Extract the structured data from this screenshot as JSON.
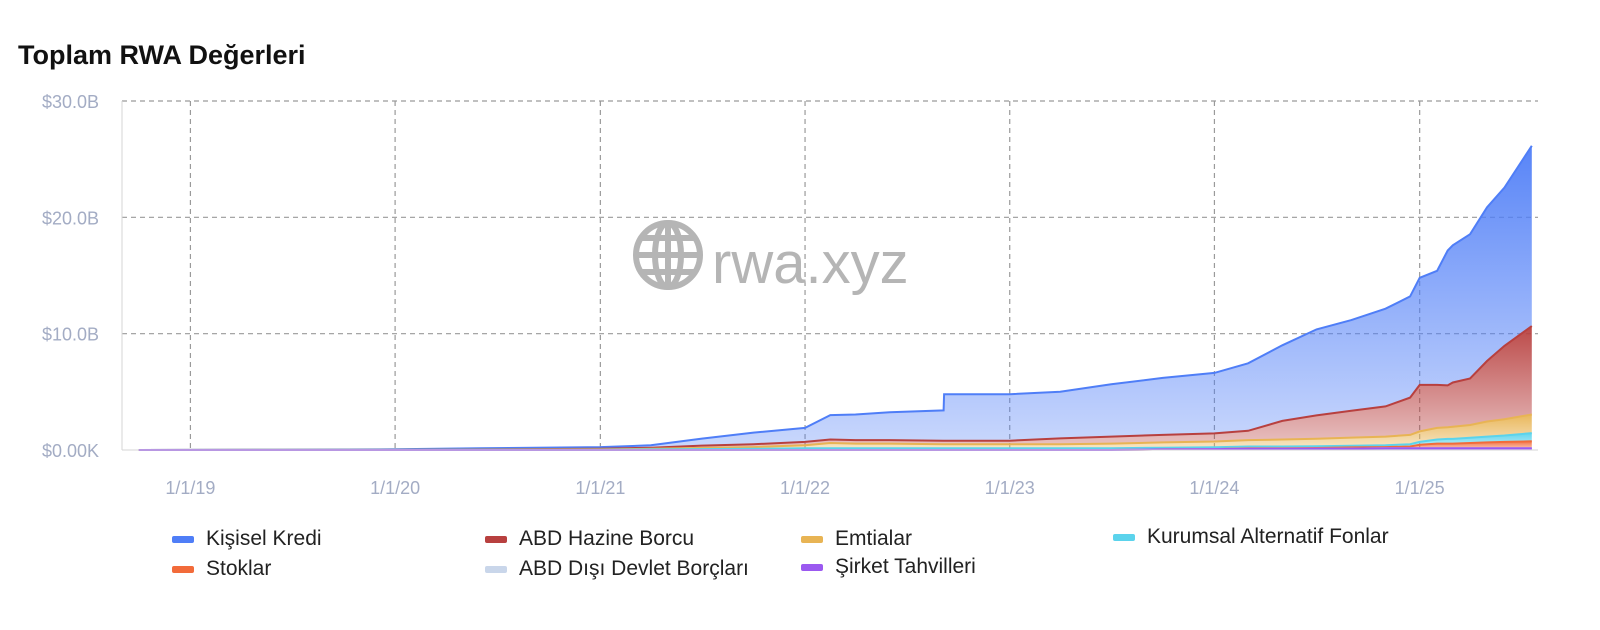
{
  "chart_data": {
    "type": "area",
    "title": "Toplam RWA Değerleri",
    "watermark": "rwa.xyz",
    "x_ticks": [
      "1/1/19",
      "1/1/20",
      "1/1/21",
      "1/1/22",
      "1/1/23",
      "1/1/24",
      "1/1/25"
    ],
    "y_ticks": [
      "$0.00K",
      "$10.0B",
      "$20.0B",
      "$30.0B"
    ],
    "ylim": [
      0,
      30
    ],
    "y_unit": "$B",
    "grid": true,
    "legend_position": "bottom",
    "x": [
      "2018-10-01",
      "2019-06-01",
      "2020-01-01",
      "2020-06-01",
      "2021-01-01",
      "2021-04-01",
      "2021-07-01",
      "2021-10-01",
      "2022-01-01",
      "2022-02-15",
      "2022-04-01",
      "2022-06-01",
      "2022-09-05",
      "2022-09-06",
      "2022-11-01",
      "2023-01-01",
      "2023-04-01",
      "2023-07-01",
      "2023-10-01",
      "2024-01-01",
      "2024-03-01",
      "2024-05-01",
      "2024-07-01",
      "2024-09-01",
      "2024-11-01",
      "2024-12-15",
      "2025-01-01",
      "2025-02-01",
      "2025-02-20",
      "2025-03-01",
      "2025-04-01",
      "2025-05-01",
      "2025-06-01",
      "2025-07-20"
    ],
    "series": [
      {
        "name": "Kişisel Kredi",
        "color": "#4f7ef7",
        "values": [
          0.0,
          0.02,
          0.05,
          0.1,
          0.15,
          0.2,
          0.6,
          1.0,
          1.2,
          2.1,
          2.2,
          2.4,
          2.6,
          4.0,
          4.0,
          4.0,
          4.0,
          4.5,
          4.9,
          5.2,
          5.8,
          6.5,
          7.4,
          7.8,
          8.4,
          8.7,
          9.2,
          9.8,
          11.6,
          11.8,
          12.4,
          13.2,
          13.6,
          15.5
        ]
      },
      {
        "name": "ABD Hazine Borcu",
        "color": "#b8403f",
        "values": [
          0.0,
          0.0,
          0.0,
          0.02,
          0.05,
          0.1,
          0.2,
          0.25,
          0.3,
          0.3,
          0.3,
          0.3,
          0.3,
          0.3,
          0.3,
          0.3,
          0.5,
          0.6,
          0.65,
          0.7,
          0.8,
          1.6,
          2.0,
          2.3,
          2.6,
          3.2,
          4.0,
          3.7,
          3.6,
          3.8,
          4.0,
          5.2,
          6.3,
          7.6
        ]
      },
      {
        "name": "Emtialar",
        "color": "#e8b454",
        "values": [
          0.0,
          0.0,
          0.0,
          0.01,
          0.02,
          0.05,
          0.1,
          0.15,
          0.25,
          0.45,
          0.4,
          0.4,
          0.35,
          0.35,
          0.35,
          0.35,
          0.35,
          0.4,
          0.45,
          0.5,
          0.55,
          0.6,
          0.65,
          0.7,
          0.75,
          0.8,
          0.9,
          1.0,
          1.0,
          1.05,
          1.1,
          1.3,
          1.4,
          1.6
        ]
      },
      {
        "name": "Kurumsal Alternatif Fonlar",
        "color": "#5bd3ec",
        "values": [
          0.0,
          0.01,
          0.01,
          0.02,
          0.03,
          0.05,
          0.08,
          0.1,
          0.15,
          0.15,
          0.15,
          0.15,
          0.15,
          0.15,
          0.15,
          0.15,
          0.15,
          0.15,
          0.15,
          0.15,
          0.15,
          0.15,
          0.15,
          0.15,
          0.15,
          0.2,
          0.25,
          0.35,
          0.4,
          0.4,
          0.45,
          0.5,
          0.55,
          0.7
        ]
      },
      {
        "name": "Stoklar",
        "color": "#f26b3a",
        "values": [
          0.0,
          0.0,
          0.0,
          0.0,
          0.0,
          0.0,
          0.0,
          0.0,
          0.0,
          0.0,
          0.0,
          0.0,
          0.0,
          0.0,
          0.0,
          0.0,
          0.0,
          0.0,
          0.0,
          0.0,
          0.05,
          0.05,
          0.05,
          0.1,
          0.1,
          0.15,
          0.3,
          0.4,
          0.4,
          0.4,
          0.45,
          0.5,
          0.55,
          0.6
        ]
      },
      {
        "name": "ABD Dışı Devlet Borçları",
        "color": "#c9d6ea",
        "values": [
          0.0,
          0.0,
          0.0,
          0.0,
          0.0,
          0.0,
          0.0,
          0.0,
          0.0,
          0.0,
          0.0,
          0.0,
          0.0,
          0.0,
          0.0,
          0.0,
          0.0,
          0.0,
          0.0,
          0.0,
          0.0,
          0.0,
          0.0,
          0.0,
          0.0,
          0.0,
          0.0,
          0.0,
          0.0,
          0.0,
          0.0,
          0.0,
          0.0,
          0.0
        ]
      },
      {
        "name": "Şirket Tahvilleri",
        "color": "#9b59f0",
        "values": [
          0.0,
          0.0,
          0.0,
          0.0,
          0.0,
          0.0,
          0.0,
          0.0,
          0.0,
          0.0,
          0.0,
          0.0,
          0.0,
          0.0,
          0.0,
          0.0,
          0.0,
          0.0,
          0.05,
          0.08,
          0.1,
          0.1,
          0.12,
          0.12,
          0.15,
          0.15,
          0.15,
          0.15,
          0.15,
          0.15,
          0.15,
          0.15,
          0.15,
          0.15
        ]
      }
    ]
  }
}
